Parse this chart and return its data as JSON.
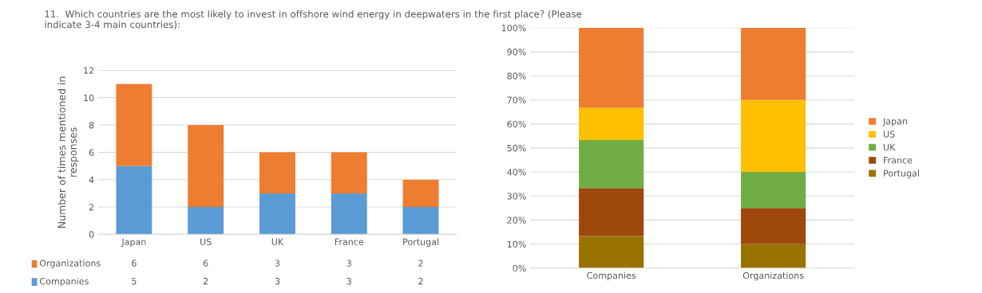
{
  "chart_data": [
    {
      "type": "bar",
      "title": "11.  Which countries are the most likely to invest in offshore wind energy in deepwaters in the first place? (Please indicate 3-4 main countries):",
      "ylabel": "Number of times mentioned in\nresponses",
      "categories": [
        "Japan",
        "US",
        "UK",
        "France",
        "Portugal"
      ],
      "stacked": true,
      "series": [
        {
          "name": "Companies",
          "color": "#5b9bd5",
          "values": [
            5,
            2,
            3,
            3,
            2
          ]
        },
        {
          "name": "Organizations",
          "color": "#ed7d31",
          "values": [
            6,
            6,
            3,
            3,
            2
          ]
        }
      ],
      "ylim": [
        0,
        12
      ],
      "yticks": [
        0,
        2,
        4,
        6,
        8,
        10,
        12
      ],
      "grid": "y",
      "data_labels": true,
      "legend": "bottom"
    },
    {
      "type": "bar",
      "categories": [
        "Companies",
        "Organizations"
      ],
      "stacked": true,
      "series": [
        {
          "name": "Portugal",
          "color": "#997300",
          "values": [
            13.3,
            10
          ]
        },
        {
          "name": "France",
          "color": "#9e480e",
          "values": [
            20,
            15
          ]
        },
        {
          "name": "UK",
          "color": "#70ad47",
          "values": [
            20,
            15
          ]
        },
        {
          "name": "US",
          "color": "#ffc000",
          "values": [
            13.4,
            30
          ]
        },
        {
          "name": "Japan",
          "color": "#ed7d31",
          "values": [
            33.3,
            30
          ]
        }
      ],
      "ylim": [
        0,
        100
      ],
      "yticks": [
        {
          "value": 0,
          "label": "0%"
        },
        {
          "value": 10,
          "label": "10%"
        },
        {
          "value": 20,
          "label": "20%"
        },
        {
          "value": 30,
          "label": "30%"
        },
        {
          "value": 40,
          "label": "40%"
        },
        {
          "value": 50,
          "label": "50%"
        },
        {
          "value": 60,
          "label": "60%"
        },
        {
          "value": 70,
          "label": "70%"
        },
        {
          "value": 80,
          "label": "80%"
        },
        {
          "value": 90,
          "label": "90%"
        },
        {
          "value": 100,
          "label": "100%"
        }
      ],
      "grid": "y",
      "legend": "right"
    }
  ]
}
